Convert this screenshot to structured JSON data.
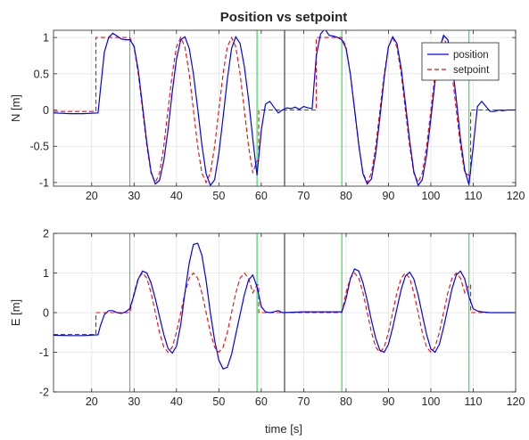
{
  "figure": {
    "title": "Position vs setpoint",
    "xlabel": "time [s]"
  },
  "chart_data": [
    {
      "type": "line",
      "ylabel": "N [m]",
      "xlim": [
        11,
        120
      ],
      "ylim": [
        -1.05,
        1.1
      ],
      "xticks": [
        20,
        30,
        40,
        50,
        60,
        70,
        80,
        90,
        100,
        110,
        120
      ],
      "yticks": [
        -1,
        -0.5,
        0,
        0.5,
        1
      ],
      "ytick_labels": [
        "-1",
        "-0.5",
        "0",
        "0.5",
        "1"
      ],
      "grid": true,
      "legend": {
        "placement": "top-right",
        "entries": [
          "position",
          "setpoint"
        ]
      },
      "vlines": [
        {
          "x": 29.0,
          "color": "#22dd44"
        },
        {
          "x": 59.0,
          "color": "#22dd44"
        },
        {
          "x": 65.5,
          "color": "#333333"
        },
        {
          "x": 79.0,
          "color": "#22dd44"
        },
        {
          "x": 109.0,
          "color": "#22dd44"
        }
      ],
      "series": [
        {
          "name": "position",
          "style": "solid",
          "color": "#0000ff",
          "x": [
            11,
            15,
            18,
            21.5,
            22,
            23,
            24,
            25,
            26,
            27,
            28,
            29,
            30,
            31,
            32,
            33,
            34,
            35,
            36,
            37,
            38,
            39,
            40,
            41,
            42,
            43,
            44,
            45,
            46,
            47,
            48,
            49,
            50,
            51,
            52,
            53,
            54,
            55,
            56,
            57,
            58,
            59,
            60,
            61,
            62,
            63,
            64,
            65,
            66,
            67,
            68,
            69,
            70,
            71,
            72,
            73,
            74,
            75,
            76,
            77,
            78,
            79,
            80,
            81,
            82,
            83,
            84,
            85,
            86,
            87,
            88,
            89,
            90,
            91,
            92,
            93,
            94,
            95,
            96,
            97,
            98,
            99,
            100,
            101,
            102,
            103,
            104,
            105,
            106,
            107,
            108,
            109,
            110,
            111,
            112,
            113,
            114,
            115,
            116,
            117,
            118,
            119,
            120
          ],
          "y": [
            -0.04,
            -0.05,
            -0.05,
            -0.04,
            0.25,
            0.8,
            1.0,
            1.06,
            1.02,
            0.98,
            0.97,
            0.97,
            0.88,
            0.55,
            0.05,
            -0.45,
            -0.85,
            -1.02,
            -0.97,
            -0.7,
            -0.28,
            0.25,
            0.7,
            0.97,
            1.01,
            0.85,
            0.5,
            0.02,
            -0.48,
            -0.88,
            -1.04,
            -0.96,
            -0.6,
            -0.1,
            0.42,
            0.85,
            1.01,
            0.92,
            0.6,
            0.15,
            -0.4,
            -0.9,
            -0.28,
            0.08,
            0.12,
            0.04,
            -0.04,
            0.0,
            0.03,
            0.02,
            0.04,
            0.01,
            0.05,
            0.03,
            0.02,
            0.75,
            1.05,
            1.12,
            1.03,
            1.02,
            1.0,
            0.97,
            0.85,
            0.5,
            0.02,
            -0.48,
            -0.88,
            -1.02,
            -0.95,
            -0.6,
            -0.1,
            0.45,
            0.87,
            1.01,
            0.92,
            0.58,
            0.1,
            -0.42,
            -0.85,
            -1.04,
            -0.96,
            -0.62,
            -0.12,
            0.4,
            0.83,
            1.03,
            0.97,
            0.65,
            0.15,
            -0.4,
            -0.83,
            -1.03,
            -0.5,
            0.05,
            0.12,
            0.05,
            -0.02,
            -0.02,
            0.0,
            -0.01,
            0.0,
            0.0,
            0.0
          ]
        },
        {
          "name": "setpoint",
          "style": "dashed",
          "color": "#ff0000",
          "x": [
            11,
            21,
            21,
            29,
            30,
            31,
            32,
            33,
            34,
            35,
            36,
            37,
            38,
            39,
            40,
            41,
            42,
            43,
            44,
            45,
            46,
            47,
            48,
            49,
            50,
            51,
            52,
            53,
            54,
            55,
            56,
            57,
            58,
            59,
            59.4,
            59.4,
            73,
            73,
            79,
            80,
            81,
            82,
            83,
            84,
            85,
            86,
            87,
            88,
            89,
            90,
            91,
            92,
            93,
            94,
            95,
            96,
            97,
            98,
            99,
            100,
            101,
            102,
            103,
            104,
            105,
            106,
            107,
            108,
            109,
            109.4,
            109.4,
            120
          ],
          "y": [
            -0.02,
            -0.02,
            1.0,
            1.0,
            0.87,
            0.5,
            0.0,
            -0.5,
            -0.87,
            -1.0,
            -0.87,
            -0.5,
            0.0,
            0.5,
            0.87,
            1.0,
            0.87,
            0.5,
            0.0,
            -0.5,
            -0.87,
            -1.0,
            -0.87,
            -0.5,
            0.0,
            0.5,
            0.87,
            1.0,
            0.87,
            0.5,
            0.0,
            -0.5,
            -0.87,
            -0.7,
            -0.7,
            0.0,
            0.0,
            1.0,
            1.0,
            0.87,
            0.5,
            0.0,
            -0.5,
            -0.87,
            -1.0,
            -0.87,
            -0.5,
            0.0,
            0.5,
            0.87,
            1.0,
            0.87,
            0.5,
            0.0,
            -0.5,
            -0.87,
            -1.0,
            -0.87,
            -0.5,
            0.0,
            0.5,
            0.87,
            1.0,
            0.87,
            0.5,
            0.0,
            -0.5,
            -0.87,
            -0.9,
            -0.9,
            0.0,
            0.0
          ]
        }
      ]
    },
    {
      "type": "line",
      "ylabel": "E [m]",
      "xlabel": "time [s]",
      "xlim": [
        11,
        120
      ],
      "ylim": [
        -2,
        2
      ],
      "xticks": [
        20,
        30,
        40,
        50,
        60,
        70,
        80,
        90,
        100,
        110,
        120
      ],
      "yticks": [
        -2,
        -1,
        0,
        1,
        2
      ],
      "ytick_labels": [
        "-2",
        "-1",
        "0",
        "1",
        "2"
      ],
      "grid": true,
      "vlines": [
        {
          "x": 29.0,
          "color": "#22dd44"
        },
        {
          "x": 59.0,
          "color": "#22dd44"
        },
        {
          "x": 65.5,
          "color": "#333333"
        },
        {
          "x": 79.0,
          "color": "#22dd44"
        },
        {
          "x": 109.0,
          "color": "#22dd44"
        }
      ],
      "series": [
        {
          "name": "position",
          "style": "solid",
          "color": "#0000ff",
          "x": [
            11,
            15,
            18,
            21.5,
            22,
            23,
            24,
            25,
            26,
            27,
            28,
            29,
            30,
            31,
            32,
            33,
            34,
            35,
            36,
            37,
            38,
            39,
            40,
            41,
            42,
            43,
            44,
            45,
            46,
            47,
            48,
            49,
            50,
            51,
            52,
            53,
            54,
            55,
            56,
            57,
            58,
            59,
            60,
            61,
            62,
            63,
            64,
            65,
            70,
            75,
            79,
            80,
            81,
            82,
            83,
            84,
            85,
            86,
            87,
            88,
            89,
            90,
            91,
            92,
            93,
            94,
            95,
            96,
            97,
            98,
            99,
            100,
            101,
            102,
            103,
            104,
            105,
            106,
            107,
            108,
            109,
            110,
            111,
            112,
            114,
            116,
            118,
            120
          ],
          "y": [
            -0.57,
            -0.58,
            -0.58,
            -0.56,
            -0.35,
            -0.05,
            0.05,
            0.05,
            0.0,
            -0.02,
            0.02,
            0.1,
            0.45,
            0.85,
            1.05,
            1.0,
            0.75,
            0.35,
            -0.1,
            -0.55,
            -0.9,
            -1.02,
            -0.85,
            -0.3,
            0.5,
            1.25,
            1.72,
            1.75,
            1.45,
            0.8,
            0.0,
            -0.7,
            -1.2,
            -1.42,
            -1.38,
            -1.05,
            -0.55,
            -0.05,
            0.45,
            0.82,
            0.95,
            0.65,
            0.15,
            0.02,
            0.0,
            0.02,
            0.05,
            0.0,
            0.02,
            0.02,
            0.02,
            0.35,
            0.85,
            1.1,
            1.05,
            0.75,
            0.3,
            -0.2,
            -0.65,
            -0.95,
            -1.0,
            -0.8,
            -0.38,
            0.1,
            0.58,
            0.92,
            1.02,
            0.85,
            0.45,
            -0.05,
            -0.55,
            -0.92,
            -1.0,
            -0.8,
            -0.38,
            0.12,
            0.6,
            0.95,
            1.05,
            0.85,
            0.4,
            0.1,
            0.04,
            0.02,
            0.0,
            0.0,
            0.0,
            0.0
          ]
        },
        {
          "name": "setpoint",
          "style": "dashed",
          "color": "#ff0000",
          "x": [
            11,
            21,
            21,
            29,
            30,
            31,
            32,
            33,
            34,
            35,
            36,
            37,
            38,
            39,
            40,
            41,
            42,
            43,
            44,
            45,
            46,
            47,
            48,
            49,
            50,
            51,
            52,
            53,
            54,
            55,
            56,
            57,
            58,
            59,
            59.4,
            59.4,
            79,
            80,
            81,
            82,
            83,
            84,
            85,
            86,
            87,
            88,
            89,
            90,
            91,
            92,
            93,
            94,
            95,
            96,
            97,
            98,
            99,
            100,
            101,
            102,
            103,
            104,
            105,
            106,
            107,
            108,
            109,
            109.4,
            109.4,
            120
          ],
          "y": [
            -0.55,
            -0.55,
            0.0,
            0.0,
            0.5,
            0.87,
            1.0,
            0.87,
            0.5,
            0.0,
            -0.5,
            -0.87,
            -1.0,
            -0.87,
            -0.5,
            0.0,
            0.5,
            0.87,
            1.0,
            0.87,
            0.5,
            0.0,
            -0.5,
            -0.87,
            -1.0,
            -0.87,
            -0.5,
            0.0,
            0.5,
            0.87,
            1.0,
            0.87,
            0.5,
            0.7,
            0.7,
            0.0,
            0.0,
            0.5,
            0.87,
            1.0,
            0.87,
            0.5,
            0.0,
            -0.5,
            -0.87,
            -1.0,
            -0.87,
            -0.5,
            0.0,
            0.5,
            0.87,
            1.0,
            0.87,
            0.5,
            0.0,
            -0.5,
            -0.87,
            -1.0,
            -0.87,
            -0.5,
            0.0,
            0.5,
            0.87,
            1.0,
            0.87,
            0.5,
            0.7,
            0.7,
            0.0,
            0.0
          ]
        }
      ]
    }
  ]
}
